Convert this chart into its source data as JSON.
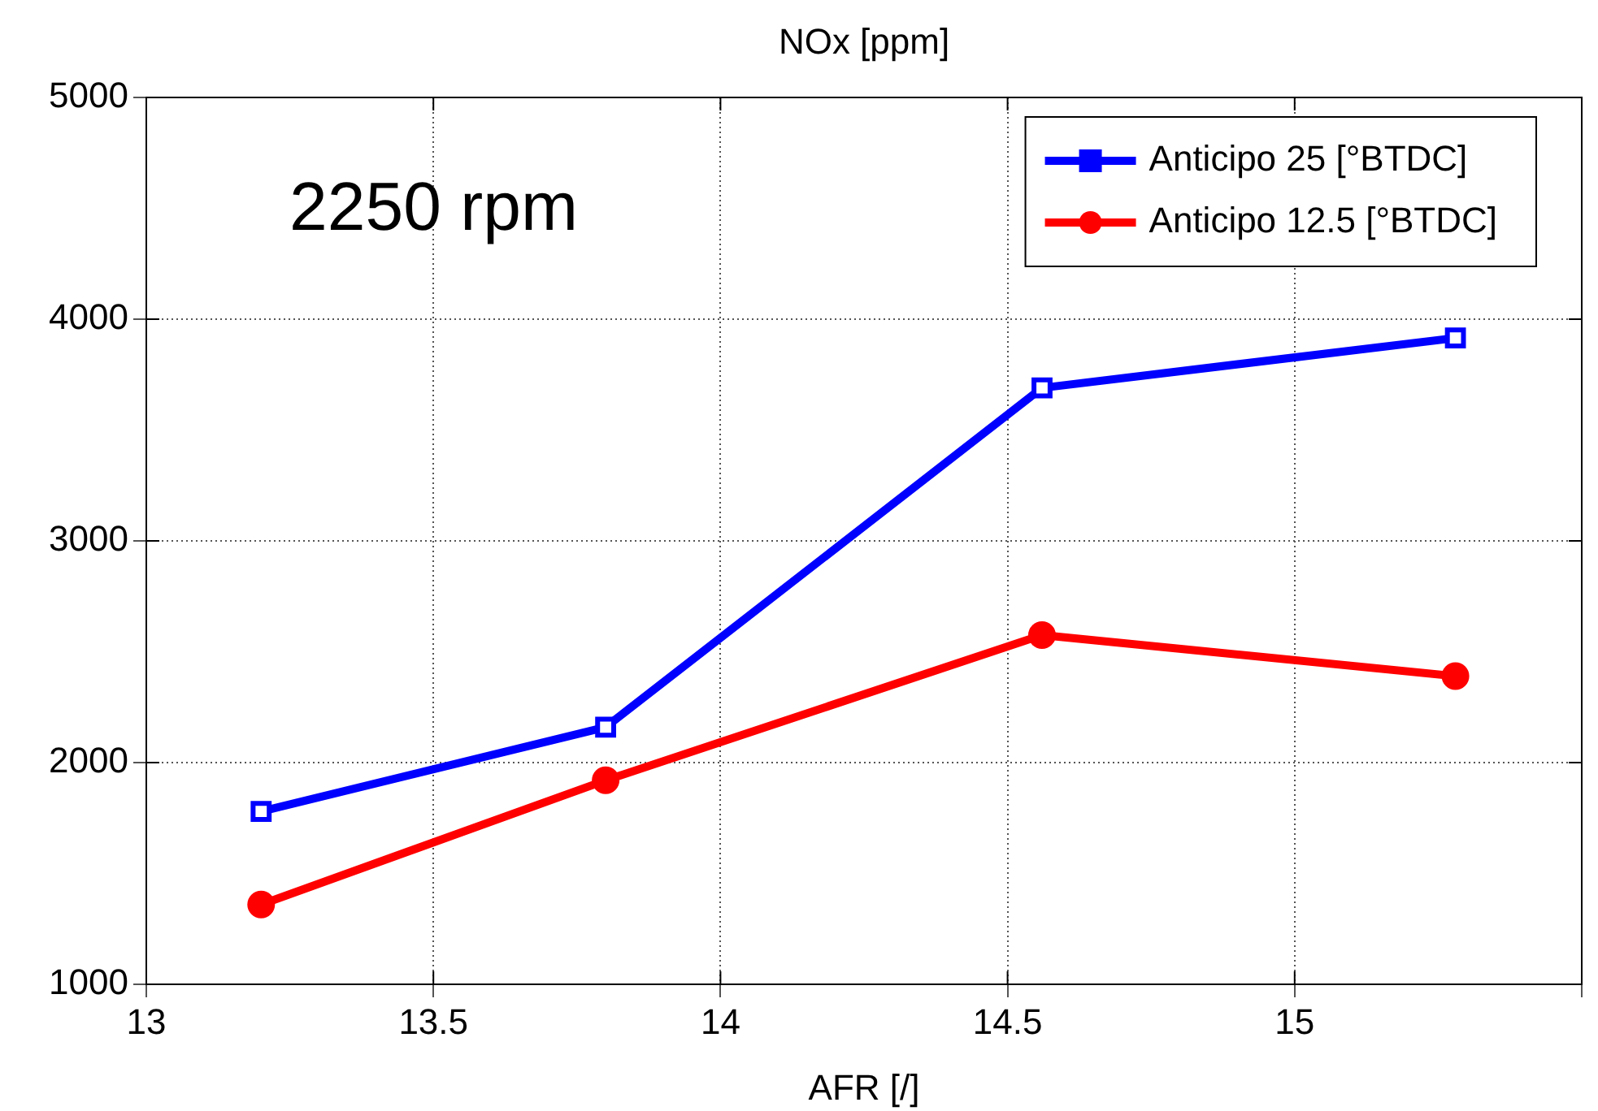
{
  "chart_data": {
    "type": "line",
    "title": "NOx [ppm]",
    "xlabel": "AFR [/]",
    "annotations": [
      "2250 rpm"
    ],
    "series": [
      {
        "name": "Anticipo 25 [°BTDC]",
        "color": "#0000ff",
        "marker": "square",
        "x": [
          13.2,
          13.8,
          14.56,
          15.28
        ],
        "values": [
          1780,
          2160,
          3690,
          3915
        ]
      },
      {
        "name": "Anticipo 12.5 [°BTDC]",
        "color": "#ff0000",
        "marker": "circle",
        "x": [
          13.2,
          13.8,
          14.56,
          15.28
        ],
        "values": [
          1360,
          1920,
          2575,
          2390
        ]
      }
    ],
    "xlim": [
      13,
      15.5
    ],
    "xticks": [
      13,
      13.5,
      14,
      14.5,
      15,
      {
        "value": 15.5,
        "label": null
      }
    ],
    "ylim": [
      1000,
      5000
    ],
    "yticks": [
      1000,
      2000,
      3000,
      4000,
      5000
    ],
    "grid": true,
    "legend": "top right",
    "line_style": "solid"
  }
}
